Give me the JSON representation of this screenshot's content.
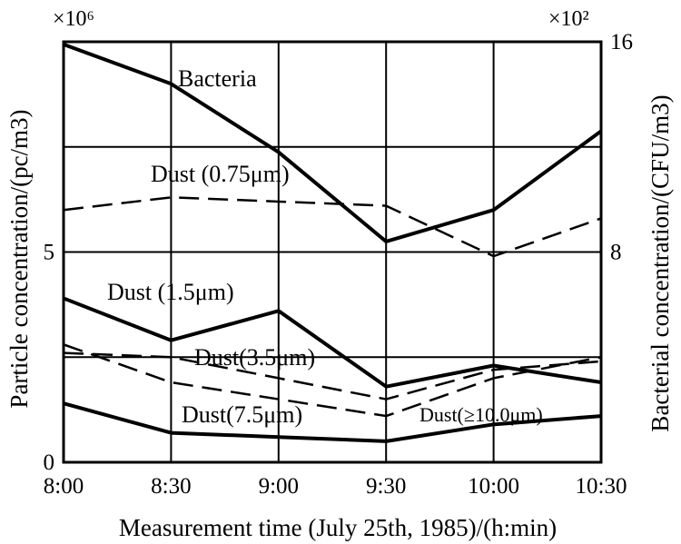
{
  "chart_data": {
    "type": "line",
    "xlabel": "Measurement time (July 25th, 1985)/(h:min)",
    "ylabel_left": "Particle concentration/(pc/m3)",
    "ylabel_right": "Bacterial concentration/(CFU/m3)",
    "left_multiplier": "×10⁶",
    "right_multiplier": "×10²",
    "categories": [
      "8:00",
      "8:30",
      "9:00",
      "9:30",
      "10:00",
      "10:30"
    ],
    "ylim_left": [
      0,
      10
    ],
    "ylim_right": [
      0,
      16
    ],
    "left_ticks": [
      "0",
      "5"
    ],
    "right_ticks": [
      "8",
      "16"
    ],
    "grid": true,
    "series": [
      {
        "name": "Bacteria",
        "axis": "right",
        "style": "solid",
        "values": [
          15.9,
          14.4,
          11.8,
          8.4,
          9.6,
          12.6
        ]
      },
      {
        "name": "Dust (0.75μm)",
        "axis": "left",
        "style": "dashed",
        "values": [
          6.0,
          6.3,
          6.2,
          6.1,
          4.9,
          5.8
        ]
      },
      {
        "name": "Dust (1.5μm)",
        "axis": "left",
        "style": "solid",
        "values": [
          3.9,
          2.9,
          3.6,
          1.8,
          2.3,
          1.9
        ]
      },
      {
        "name": "Dust(3.5μm)",
        "axis": "left",
        "style": "dashed",
        "values": [
          2.8,
          1.9,
          1.5,
          1.1,
          2.0,
          2.5
        ]
      },
      {
        "name": "Dust(≥10.0μm)",
        "axis": "left",
        "style": "dashed",
        "values": [
          2.6,
          2.5,
          2.0,
          1.5,
          2.2,
          2.4
        ]
      },
      {
        "name": "Dust(7.5μm)",
        "axis": "left",
        "style": "solid",
        "values": [
          1.4,
          0.7,
          0.6,
          0.5,
          0.9,
          1.1
        ]
      }
    ],
    "annotations": [
      "Bacteria",
      "Dust (0.75μm)",
      "Dust (1.5μm)",
      "Dust(3.5μm)",
      "Dust(7.5μm)",
      "Dust(≥10.0μm)"
    ]
  }
}
